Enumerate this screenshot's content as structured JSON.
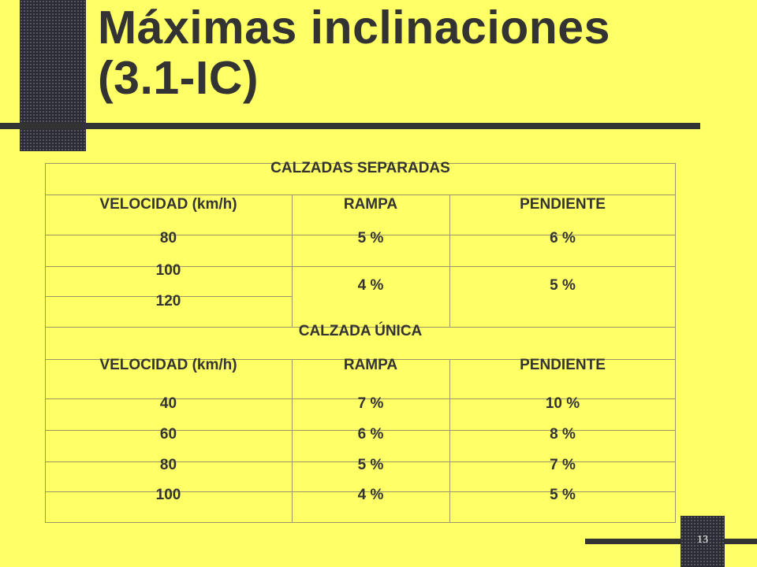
{
  "slide": {
    "title_line1": "Máximas inclinaciones",
    "title_line2": "(3.1-IC)",
    "page_number": "13"
  },
  "table": {
    "section1": {
      "heading": "CALZADAS SEPARADAS",
      "headers": [
        "VELOCIDAD (km/h)",
        "RAMPA",
        "PENDIENTE"
      ],
      "rows": [
        {
          "velocidad": "80",
          "rampa": "5 %",
          "pendiente": "6 %"
        },
        {
          "velocidad": "100",
          "rampa": "4 %",
          "pendiente": "5 %"
        },
        {
          "velocidad": "120"
        }
      ]
    },
    "section2": {
      "heading": "CALZADA ÚNICA",
      "headers": [
        "VELOCIDAD (km/h)",
        "RAMPA",
        "PENDIENTE"
      ],
      "rows": [
        {
          "velocidad": "40",
          "rampa": "7 %",
          "pendiente": "10 %"
        },
        {
          "velocidad": "60",
          "rampa": "6 %",
          "pendiente": "8 %"
        },
        {
          "velocidad": "80",
          "rampa": "5 %",
          "pendiente": "7 %"
        },
        {
          "velocidad": "100",
          "rampa": "4 %",
          "pendiente": "5 %"
        }
      ]
    }
  }
}
